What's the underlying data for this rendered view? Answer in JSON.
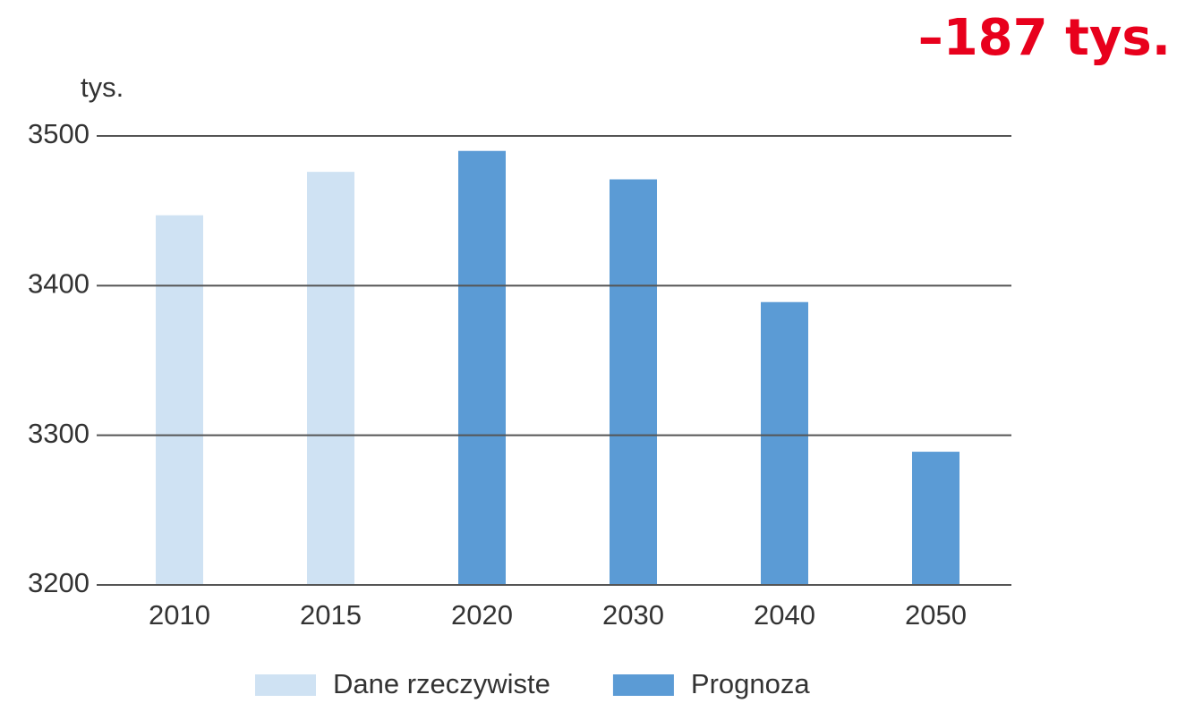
{
  "chart_data": {
    "type": "bar",
    "annotation": "–187 tys.",
    "y_label": "tys.",
    "categories": [
      "2010",
      "2015",
      "2020",
      "2030",
      "2040",
      "2050"
    ],
    "series": [
      {
        "name": "Dane rzeczywiste",
        "color": "#cfe2f3",
        "values": [
          3447,
          3476,
          null,
          null,
          null,
          null
        ]
      },
      {
        "name": "Prognoza",
        "color": "#5b9bd5",
        "values": [
          null,
          null,
          3490,
          3471,
          3389,
          3289
        ]
      }
    ],
    "ylim": [
      3200,
      3500
    ],
    "yticks": [
      3200,
      3300,
      3400,
      3500
    ],
    "grid": true,
    "legend": "bottom"
  }
}
